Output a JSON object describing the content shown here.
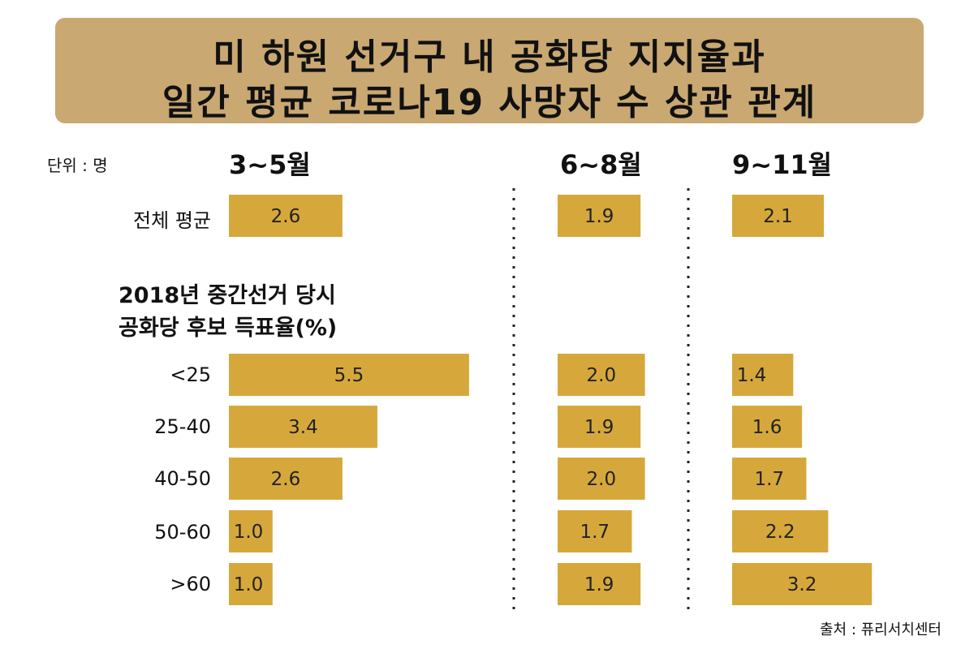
{
  "title": {
    "line1": "미 하원 선거구 내 공화당 지지율과",
    "line2": "일간 평균 코로나19 사망자 수 상관 관계"
  },
  "unit_label": "단위 : 명",
  "source": "출처 : 퓨리서치센터",
  "group_title": {
    "line1": "2018년 중간선거 당시",
    "line2": "공화당 후보 득표율(%)"
  },
  "chart_data": {
    "type": "bar",
    "orientation": "horizontal",
    "title": "미 하원 선거구 내 공화당 지지율과 일간 평균 코로나19 사망자 수 상관 관계",
    "unit": "단위 : 명",
    "categories": [
      "전체 평균",
      "<25",
      "25-40",
      "40-50",
      "50-60",
      ">60"
    ],
    "series": [
      {
        "name": "3~5월",
        "values": [
          2.6,
          5.5,
          3.4,
          2.6,
          1.0,
          1.0
        ]
      },
      {
        "name": "6~8월",
        "values": [
          1.9,
          2.0,
          1.9,
          2.0,
          1.7,
          1.9
        ]
      },
      {
        "name": "9~11월",
        "values": [
          2.1,
          1.4,
          1.6,
          1.7,
          2.2,
          3.2
        ]
      }
    ],
    "colors": {
      "bar": "#d6a83b",
      "title_box": "#c9a872"
    }
  }
}
